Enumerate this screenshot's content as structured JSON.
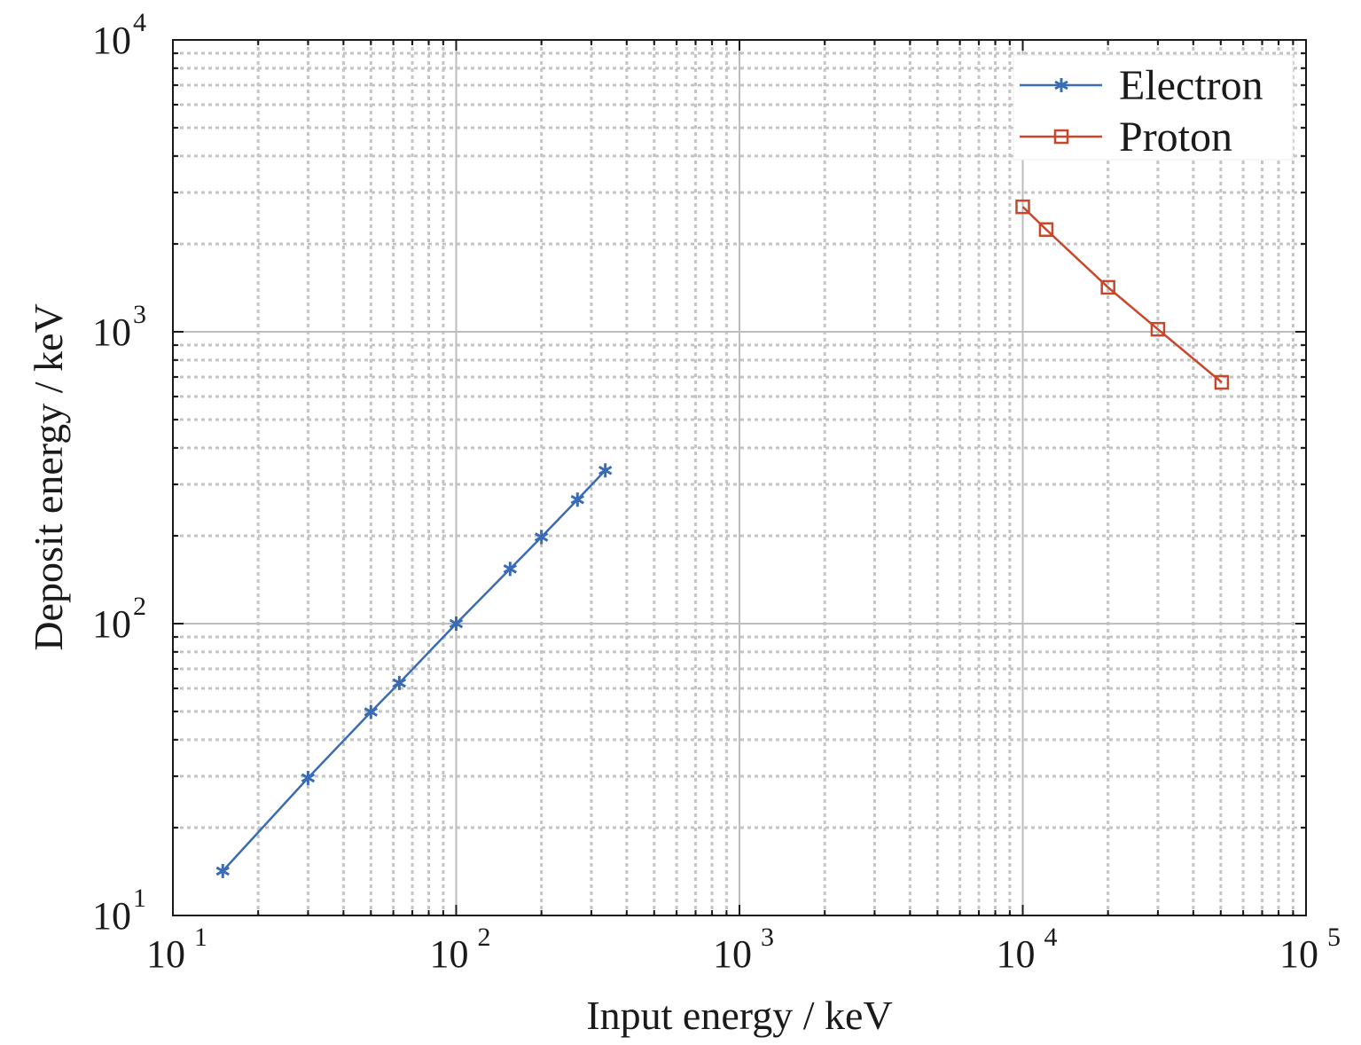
{
  "chart_data": {
    "type": "line",
    "title": "",
    "xlabel": "Input energy / keV",
    "ylabel": "Deposit energy / keV",
    "xscale": "log",
    "yscale": "log",
    "xlim": [
      10,
      100000
    ],
    "ylim": [
      10,
      10000
    ],
    "xticks": [
      {
        "base": "10",
        "exp": "1"
      },
      {
        "base": "10",
        "exp": "2"
      },
      {
        "base": "10",
        "exp": "3"
      },
      {
        "base": "10",
        "exp": "4"
      },
      {
        "base": "10",
        "exp": "5"
      }
    ],
    "yticks": [
      {
        "base": "10",
        "exp": "1"
      },
      {
        "base": "10",
        "exp": "2"
      },
      {
        "base": "10",
        "exp": "3"
      },
      {
        "base": "10",
        "exp": "4"
      }
    ],
    "grid": true,
    "legend_position": "top-right",
    "series": [
      {
        "name": "Electron",
        "color": "#3a6bb5",
        "marker": "asterisk",
        "x": [
          15,
          30,
          50,
          63,
          100,
          155,
          200,
          268,
          336
        ],
        "y": [
          14.2,
          29.6,
          49.8,
          62.6,
          100,
          154,
          198,
          266,
          335
        ]
      },
      {
        "name": "Proton",
        "color": "#c8472a",
        "marker": "square",
        "x": [
          10000,
          12100,
          20000,
          30000,
          50400
        ],
        "y": [
          2680,
          2240,
          1420,
          1020,
          671
        ]
      }
    ]
  }
}
